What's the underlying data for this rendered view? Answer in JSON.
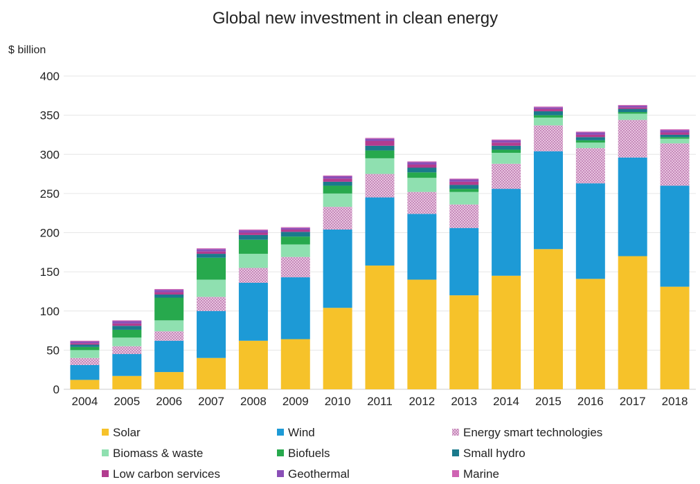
{
  "chart_data": {
    "type": "bar",
    "stacked": true,
    "title": "Global new investment in clean energy",
    "ylabel": "$ billion",
    "xlabel": "",
    "ylim": [
      0,
      400
    ],
    "yticks": [
      0,
      50,
      100,
      150,
      200,
      250,
      300,
      350,
      400
    ],
    "grid": true,
    "legend_position": "bottom",
    "categories": [
      "2004",
      "2005",
      "2006",
      "2007",
      "2008",
      "2009",
      "2010",
      "2011",
      "2012",
      "2013",
      "2014",
      "2015",
      "2016",
      "2017",
      "2018"
    ],
    "series": [
      {
        "name": "Solar",
        "color": "#f6c22a",
        "pattern": false,
        "values": [
          12,
          17,
          22,
          40,
          62,
          64,
          104,
          158,
          140,
          120,
          145,
          179,
          141,
          170,
          131
        ]
      },
      {
        "name": "Wind",
        "color": "#1d9ad6",
        "pattern": false,
        "values": [
          19,
          28,
          40,
          60,
          74,
          79,
          100,
          87,
          84,
          86,
          111,
          125,
          122,
          126,
          129
        ]
      },
      {
        "name": "Energy smart technologies",
        "color": "#d9a6cf",
        "pattern": true,
        "values": [
          9,
          10,
          12,
          18,
          19,
          26,
          29,
          30,
          28,
          30,
          32,
          33,
          45,
          48,
          54
        ]
      },
      {
        "name": "Biomass & waste",
        "color": "#8fe0b0",
        "pattern": false,
        "values": [
          10,
          11,
          14,
          22,
          18,
          16,
          17,
          20,
          18,
          16,
          14,
          10,
          7,
          8,
          6
        ]
      },
      {
        "name": "Biofuels",
        "color": "#27a94d",
        "pattern": false,
        "values": [
          4,
          10,
          29,
          28,
          18,
          10,
          10,
          10,
          7,
          4,
          4,
          3,
          3,
          2,
          2
        ]
      },
      {
        "name": "Small hydro",
        "color": "#1a7a8c",
        "pattern": false,
        "values": [
          3,
          5,
          4,
          5,
          6,
          6,
          5,
          6,
          6,
          5,
          5,
          5,
          4,
          4,
          3
        ]
      },
      {
        "name": "Low carbon services",
        "color": "#b23c8f",
        "pattern": false,
        "values": [
          2,
          3,
          3,
          3,
          3,
          3,
          4,
          6,
          4,
          4,
          4,
          3,
          3,
          2,
          3
        ]
      },
      {
        "name": "Geothermal",
        "color": "#8a4fb7",
        "pattern": false,
        "values": [
          2,
          3,
          3,
          3,
          3,
          2,
          3,
          3,
          3,
          3,
          3,
          2,
          3,
          2,
          3
        ]
      },
      {
        "name": "Marine",
        "color": "#cf63b3",
        "pattern": false,
        "values": [
          1,
          1,
          1,
          1,
          1,
          1,
          1,
          1,
          1,
          1,
          1,
          1,
          1,
          1,
          1
        ]
      }
    ]
  }
}
